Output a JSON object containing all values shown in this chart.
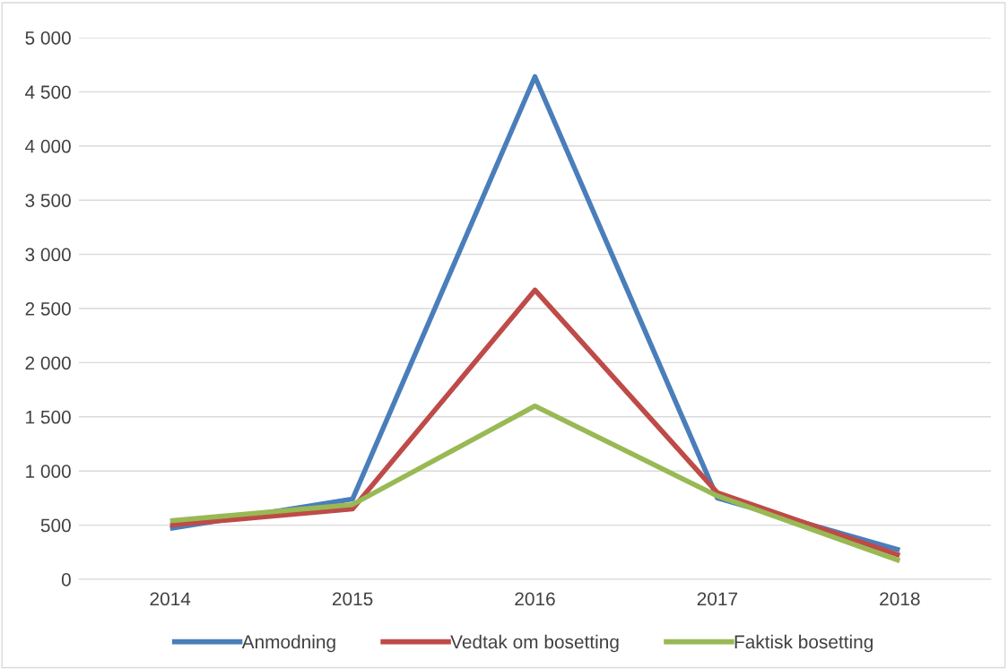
{
  "chart_data": {
    "type": "line",
    "categories": [
      "2014",
      "2015",
      "2016",
      "2017",
      "2018"
    ],
    "series": [
      {
        "name": "Anmodning",
        "color": "#4a7ebb",
        "values": [
          470,
          740,
          4640,
          750,
          270
        ]
      },
      {
        "name": "Vedtak om bosetting",
        "color": "#be4b48",
        "values": [
          500,
          650,
          2670,
          800,
          220
        ]
      },
      {
        "name": "Faktisk bosetting",
        "color": "#98b954",
        "values": [
          540,
          690,
          1600,
          770,
          170
        ]
      }
    ],
    "ylim": [
      0,
      5000
    ],
    "yticks": [
      0,
      500,
      {
        "value": 1000,
        "label": "1 000"
      },
      {
        "value": 1500,
        "label": "1 500"
      },
      {
        "value": 2000,
        "label": "2 000"
      },
      {
        "value": 2500,
        "label": "2 500"
      },
      {
        "value": 3000,
        "label": "3 000"
      },
      {
        "value": 3500,
        "label": "3 500"
      },
      {
        "value": 4000,
        "label": "4 000"
      },
      {
        "value": 4500,
        "label": "4 500"
      },
      {
        "value": 5000,
        "label": "5 000"
      }
    ],
    "grid": "y",
    "legend": "bottom",
    "marker": "none",
    "line_style": "solid"
  }
}
